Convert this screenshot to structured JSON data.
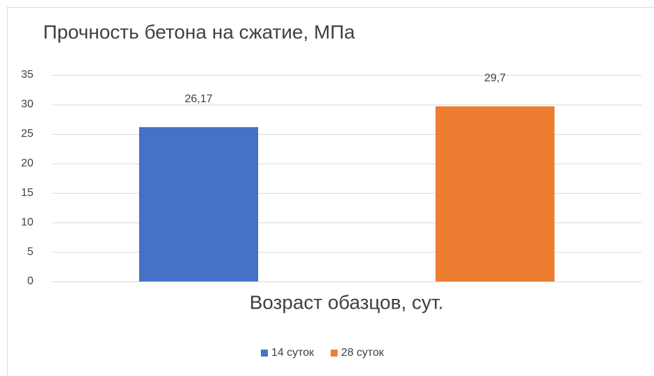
{
  "chart_data": {
    "type": "bar",
    "title": "Прочность бетона на сжатие, МПа",
    "x_label": "Возраст обазцов, сут.",
    "categories": [
      null
    ],
    "series": [
      {
        "name": "14 суток",
        "color": "#4472c4",
        "values": [
          26.17
        ],
        "value_labels": [
          "26,17"
        ]
      },
      {
        "name": "28 суток",
        "color": "#ed7d31",
        "values": [
          29.7
        ],
        "value_labels": [
          "29,7"
        ]
      }
    ],
    "ylim": [
      0,
      35
    ],
    "yticks": [
      0,
      5,
      10,
      15,
      20,
      25,
      30,
      35
    ],
    "grid": true,
    "legend": "bottom"
  }
}
